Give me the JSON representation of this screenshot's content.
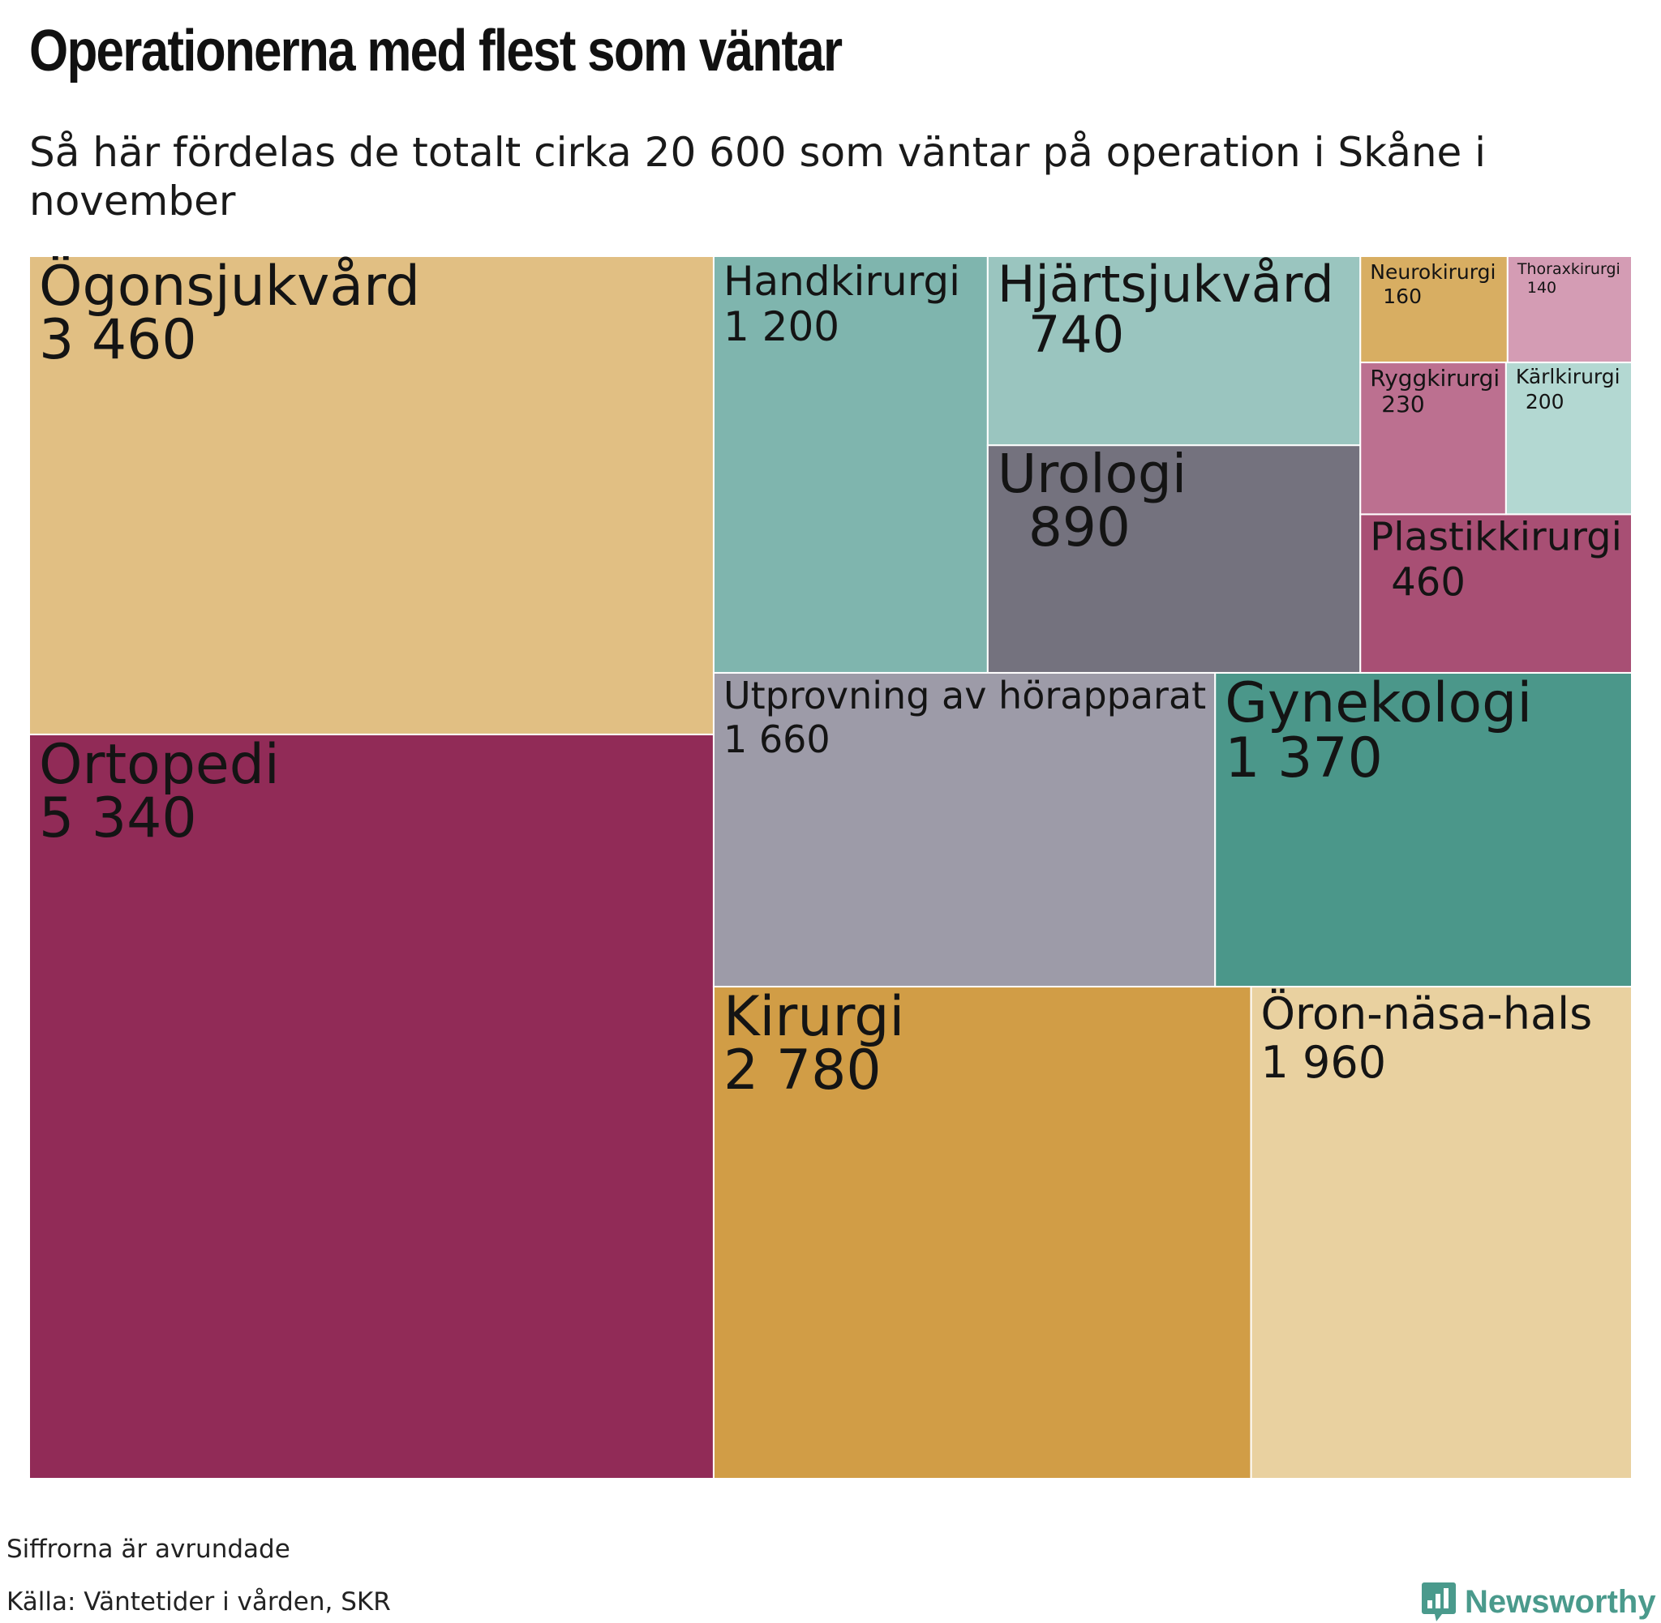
{
  "title": "Operationerna med flest som väntar",
  "subtitle": "Så här fördelas de totalt cirka 20 600 som väntar på operation i Skåne i november",
  "footer": {
    "note": "Siffrorna är avrundade",
    "source": "Källa: Väntetider i vården, SKR",
    "brand": "Newsworthy"
  },
  "icons": {
    "logo": "bar-chart-speech-bubble-icon"
  },
  "chart_data": {
    "type": "treemap",
    "title": "Operationerna med flest som väntar",
    "subtitle": "Så här fördelas de totalt cirka 20 600 som väntar på operation i Skåne i november",
    "items": [
      {
        "label": "Ortopedi",
        "value": 5340,
        "value_label": "5 340",
        "color": "#912b57"
      },
      {
        "label": "Ögonsjukvård",
        "value": 3460,
        "value_label": "3 460",
        "color": "#e1bf83"
      },
      {
        "label": "Kirurgi",
        "value": 2780,
        "value_label": "2 780",
        "color": "#d19d46"
      },
      {
        "label": "Öron-näsa-hals",
        "value": 1960,
        "value_label": "1 960",
        "color": "#e9d1a0"
      },
      {
        "label": "Utprovning av hörapparat",
        "value": 1660,
        "value_label": "1 660",
        "color": "#9d9ba8"
      },
      {
        "label": "Gynekologi",
        "value": 1370,
        "value_label": "1 370",
        "color": "#4b978a"
      },
      {
        "label": "Handkirurgi",
        "value": 1200,
        "value_label": "1 200",
        "color": "#7fb5ae"
      },
      {
        "label": "Urologi",
        "value": 890,
        "value_label": "890",
        "color": "#74727e"
      },
      {
        "label": "Hjärtsjukvård",
        "value": 740,
        "value_label": "740",
        "color": "#9ac5bf"
      },
      {
        "label": "Plastikkirurgi",
        "value": 460,
        "value_label": "460",
        "color": "#a84f74"
      },
      {
        "label": "Ryggkirurgi",
        "value": 230,
        "value_label": "230",
        "color": "#bc7090"
      },
      {
        "label": "Kärlkirurgi",
        "value": 200,
        "value_label": "200",
        "color": "#b3d8d2"
      },
      {
        "label": "Neurokirurgi",
        "value": 160,
        "value_label": "160",
        "color": "#d8ae62"
      },
      {
        "label": "Thoraxkirurgi",
        "value": 140,
        "value_label": "140",
        "color": "#d49cb4"
      }
    ]
  }
}
